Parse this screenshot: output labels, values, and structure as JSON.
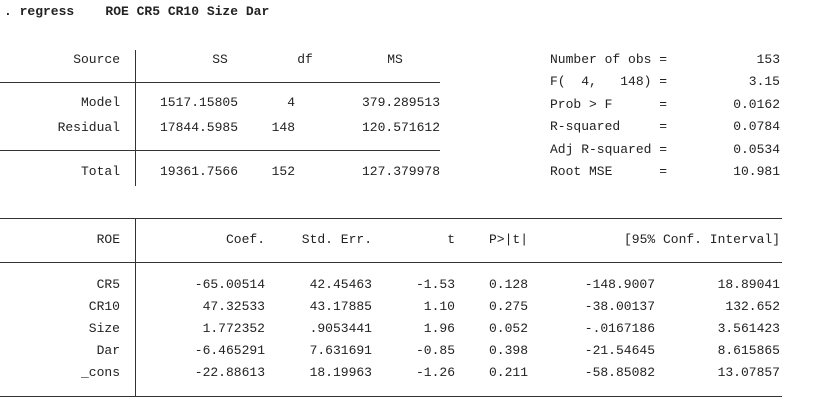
{
  "command": ". regress    ROE CR5 CR10 Size Dar",
  "anova": {
    "headers": [
      "Source",
      "SS",
      "df",
      "MS"
    ],
    "rows": [
      [
        "Model",
        "1517.15805",
        "4",
        "379.289513"
      ],
      [
        "Residual",
        "17844.5985",
        "148",
        "120.571612"
      ],
      [
        "Total",
        "19361.7566",
        "152",
        "127.379978"
      ]
    ]
  },
  "stats": [
    {
      "label": "Number of obs =",
      "value": "153"
    },
    {
      "label": "F(  4,   148) =",
      "value": "3.15"
    },
    {
      "label": "Prob > F      =",
      "value": "0.0162"
    },
    {
      "label": "R-squared     =",
      "value": "0.0784"
    },
    {
      "label": "Adj R-squared =",
      "value": "0.0534"
    },
    {
      "label": "Root MSE      =",
      "value": "10.981"
    }
  ],
  "coef": {
    "headers": [
      "ROE",
      "Coef.",
      "Std. Err.",
      "t",
      "P>|t|",
      "[95% Conf. Interval]"
    ],
    "rows": [
      [
        "CR5",
        "-65.00514",
        "42.45463",
        "-1.53",
        "0.128",
        "-148.9007",
        "18.89041"
      ],
      [
        "CR10",
        "47.32533",
        "43.17885",
        "1.10",
        "0.275",
        "-38.00137",
        "132.652"
      ],
      [
        "Size",
        "1.772352",
        ".9053441",
        "1.96",
        "0.052",
        "-.0167186",
        "3.561423"
      ],
      [
        "Dar",
        "-6.465291",
        "7.631691",
        "-0.85",
        "0.398",
        "-21.54645",
        "8.615865"
      ],
      [
        "_cons",
        "-22.88613",
        "18.19963",
        "-1.26",
        "0.211",
        "-58.85082",
        "13.07857"
      ]
    ]
  }
}
